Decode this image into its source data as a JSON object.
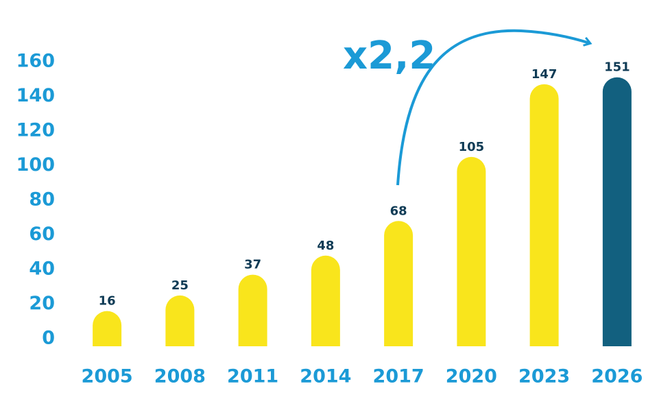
{
  "chart_data": {
    "type": "bar",
    "annotation": "x2,2",
    "categories": [
      "2005",
      "2008",
      "2011",
      "2014",
      "2017",
      "2020",
      "2023",
      "2026"
    ],
    "values": [
      16,
      25,
      37,
      48,
      68,
      105,
      147,
      151
    ],
    "colors": [
      "#f9e51c",
      "#f9e51c",
      "#f9e51c",
      "#f9e51c",
      "#f9e51c",
      "#f9e51c",
      "#f9e51c",
      "#12607f"
    ],
    "ylim": [
      0,
      160
    ],
    "yticks": [
      0,
      20,
      40,
      60,
      80,
      100,
      120,
      140,
      160
    ],
    "grid": false
  }
}
